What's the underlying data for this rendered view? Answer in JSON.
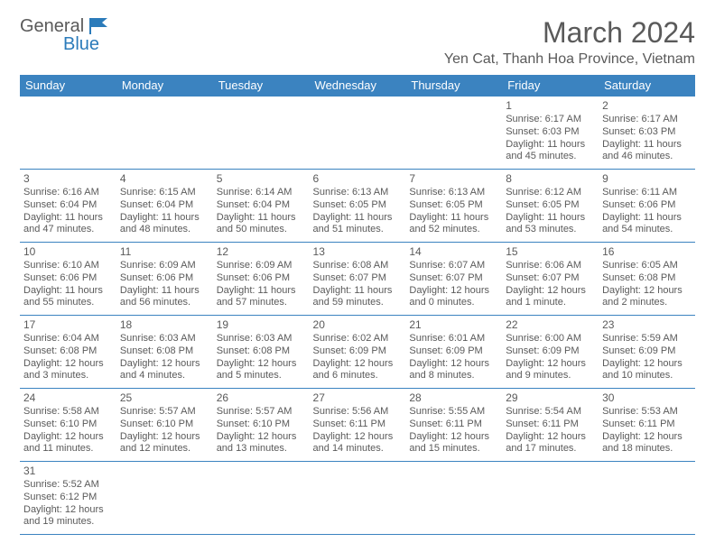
{
  "logo": {
    "part1": "General",
    "part2": "Blue"
  },
  "title": "March 2024",
  "location": "Yen Cat, Thanh Hoa Province, Vietnam",
  "weekdays": [
    "Sunday",
    "Monday",
    "Tuesday",
    "Wednesday",
    "Thursday",
    "Friday",
    "Saturday"
  ],
  "colors": {
    "header_bg": "#3b83c0",
    "header_text": "#ffffff",
    "text": "#5a5a5a",
    "border": "#3b83c0",
    "logo_gray": "#5a5a5a",
    "logo_blue": "#2b7bba"
  },
  "weeks": [
    [
      null,
      null,
      null,
      null,
      null,
      {
        "n": "1",
        "sunrise": "Sunrise: 6:17 AM",
        "sunset": "Sunset: 6:03 PM",
        "daylight": "Daylight: 11 hours and 45 minutes."
      },
      {
        "n": "2",
        "sunrise": "Sunrise: 6:17 AM",
        "sunset": "Sunset: 6:03 PM",
        "daylight": "Daylight: 11 hours and 46 minutes."
      }
    ],
    [
      {
        "n": "3",
        "sunrise": "Sunrise: 6:16 AM",
        "sunset": "Sunset: 6:04 PM",
        "daylight": "Daylight: 11 hours and 47 minutes."
      },
      {
        "n": "4",
        "sunrise": "Sunrise: 6:15 AM",
        "sunset": "Sunset: 6:04 PM",
        "daylight": "Daylight: 11 hours and 48 minutes."
      },
      {
        "n": "5",
        "sunrise": "Sunrise: 6:14 AM",
        "sunset": "Sunset: 6:04 PM",
        "daylight": "Daylight: 11 hours and 50 minutes."
      },
      {
        "n": "6",
        "sunrise": "Sunrise: 6:13 AM",
        "sunset": "Sunset: 6:05 PM",
        "daylight": "Daylight: 11 hours and 51 minutes."
      },
      {
        "n": "7",
        "sunrise": "Sunrise: 6:13 AM",
        "sunset": "Sunset: 6:05 PM",
        "daylight": "Daylight: 11 hours and 52 minutes."
      },
      {
        "n": "8",
        "sunrise": "Sunrise: 6:12 AM",
        "sunset": "Sunset: 6:05 PM",
        "daylight": "Daylight: 11 hours and 53 minutes."
      },
      {
        "n": "9",
        "sunrise": "Sunrise: 6:11 AM",
        "sunset": "Sunset: 6:06 PM",
        "daylight": "Daylight: 11 hours and 54 minutes."
      }
    ],
    [
      {
        "n": "10",
        "sunrise": "Sunrise: 6:10 AM",
        "sunset": "Sunset: 6:06 PM",
        "daylight": "Daylight: 11 hours and 55 minutes."
      },
      {
        "n": "11",
        "sunrise": "Sunrise: 6:09 AM",
        "sunset": "Sunset: 6:06 PM",
        "daylight": "Daylight: 11 hours and 56 minutes."
      },
      {
        "n": "12",
        "sunrise": "Sunrise: 6:09 AM",
        "sunset": "Sunset: 6:06 PM",
        "daylight": "Daylight: 11 hours and 57 minutes."
      },
      {
        "n": "13",
        "sunrise": "Sunrise: 6:08 AM",
        "sunset": "Sunset: 6:07 PM",
        "daylight": "Daylight: 11 hours and 59 minutes."
      },
      {
        "n": "14",
        "sunrise": "Sunrise: 6:07 AM",
        "sunset": "Sunset: 6:07 PM",
        "daylight": "Daylight: 12 hours and 0 minutes."
      },
      {
        "n": "15",
        "sunrise": "Sunrise: 6:06 AM",
        "sunset": "Sunset: 6:07 PM",
        "daylight": "Daylight: 12 hours and 1 minute."
      },
      {
        "n": "16",
        "sunrise": "Sunrise: 6:05 AM",
        "sunset": "Sunset: 6:08 PM",
        "daylight": "Daylight: 12 hours and 2 minutes."
      }
    ],
    [
      {
        "n": "17",
        "sunrise": "Sunrise: 6:04 AM",
        "sunset": "Sunset: 6:08 PM",
        "daylight": "Daylight: 12 hours and 3 minutes."
      },
      {
        "n": "18",
        "sunrise": "Sunrise: 6:03 AM",
        "sunset": "Sunset: 6:08 PM",
        "daylight": "Daylight: 12 hours and 4 minutes."
      },
      {
        "n": "19",
        "sunrise": "Sunrise: 6:03 AM",
        "sunset": "Sunset: 6:08 PM",
        "daylight": "Daylight: 12 hours and 5 minutes."
      },
      {
        "n": "20",
        "sunrise": "Sunrise: 6:02 AM",
        "sunset": "Sunset: 6:09 PM",
        "daylight": "Daylight: 12 hours and 6 minutes."
      },
      {
        "n": "21",
        "sunrise": "Sunrise: 6:01 AM",
        "sunset": "Sunset: 6:09 PM",
        "daylight": "Daylight: 12 hours and 8 minutes."
      },
      {
        "n": "22",
        "sunrise": "Sunrise: 6:00 AM",
        "sunset": "Sunset: 6:09 PM",
        "daylight": "Daylight: 12 hours and 9 minutes."
      },
      {
        "n": "23",
        "sunrise": "Sunrise: 5:59 AM",
        "sunset": "Sunset: 6:09 PM",
        "daylight": "Daylight: 12 hours and 10 minutes."
      }
    ],
    [
      {
        "n": "24",
        "sunrise": "Sunrise: 5:58 AM",
        "sunset": "Sunset: 6:10 PM",
        "daylight": "Daylight: 12 hours and 11 minutes."
      },
      {
        "n": "25",
        "sunrise": "Sunrise: 5:57 AM",
        "sunset": "Sunset: 6:10 PM",
        "daylight": "Daylight: 12 hours and 12 minutes."
      },
      {
        "n": "26",
        "sunrise": "Sunrise: 5:57 AM",
        "sunset": "Sunset: 6:10 PM",
        "daylight": "Daylight: 12 hours and 13 minutes."
      },
      {
        "n": "27",
        "sunrise": "Sunrise: 5:56 AM",
        "sunset": "Sunset: 6:11 PM",
        "daylight": "Daylight: 12 hours and 14 minutes."
      },
      {
        "n": "28",
        "sunrise": "Sunrise: 5:55 AM",
        "sunset": "Sunset: 6:11 PM",
        "daylight": "Daylight: 12 hours and 15 minutes."
      },
      {
        "n": "29",
        "sunrise": "Sunrise: 5:54 AM",
        "sunset": "Sunset: 6:11 PM",
        "daylight": "Daylight: 12 hours and 17 minutes."
      },
      {
        "n": "30",
        "sunrise": "Sunrise: 5:53 AM",
        "sunset": "Sunset: 6:11 PM",
        "daylight": "Daylight: 12 hours and 18 minutes."
      }
    ],
    [
      {
        "n": "31",
        "sunrise": "Sunrise: 5:52 AM",
        "sunset": "Sunset: 6:12 PM",
        "daylight": "Daylight: 12 hours and 19 minutes."
      },
      null,
      null,
      null,
      null,
      null,
      null
    ]
  ]
}
